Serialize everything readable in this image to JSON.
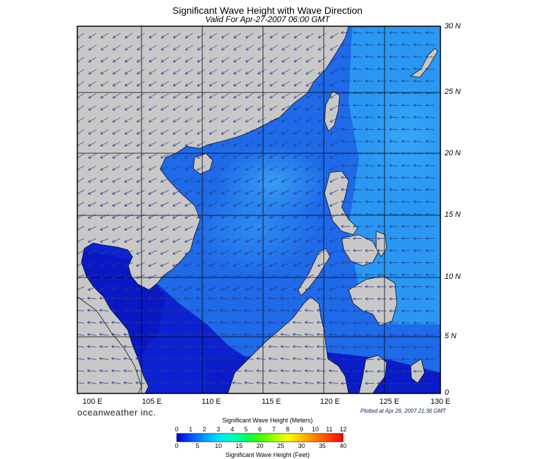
{
  "title": "Significant Wave Height with Wave Direction",
  "subtitle": "Valid For Apr-27-2007 06:00 GMT",
  "map": {
    "lon_labels": [
      "100 E",
      "105 E",
      "110 E",
      "115 E",
      "120 E",
      "125 E",
      "130 E"
    ],
    "lat_labels": [
      "30 N",
      "25 N",
      "20 N",
      "15 N",
      "10 N",
      "5 N",
      "0"
    ],
    "land_color": "#c8c8c8",
    "water_colors": [
      "#0a14c8",
      "#1450e6",
      "#1e82f0",
      "#2aa0f4"
    ],
    "arrow_color": "#2a3a8a"
  },
  "brand": "oceanweather inc.",
  "plotted_at": "Plotted at Apr 26, 2007 21:36 GMT",
  "colorbar": {
    "title_top": "Significant Wave Height (Meters)",
    "title_bottom": "Significant Wave Height (Feet)",
    "meters_ticks": [
      "0",
      "1",
      "2",
      "3",
      "4",
      "5",
      "6",
      "7",
      "8",
      "9",
      "10",
      "11",
      "12"
    ],
    "feet_ticks": [
      "0",
      "5",
      "10",
      "15",
      "20",
      "25",
      "30",
      "35",
      "40"
    ],
    "colors": [
      "#0000c8",
      "#0050ff",
      "#00a0ff",
      "#00e0ff",
      "#00ffc0",
      "#00ff60",
      "#40ff00",
      "#a0ff00",
      "#ffff00",
      "#ffc000",
      "#ff8000",
      "#ff4000",
      "#ff0000"
    ]
  }
}
